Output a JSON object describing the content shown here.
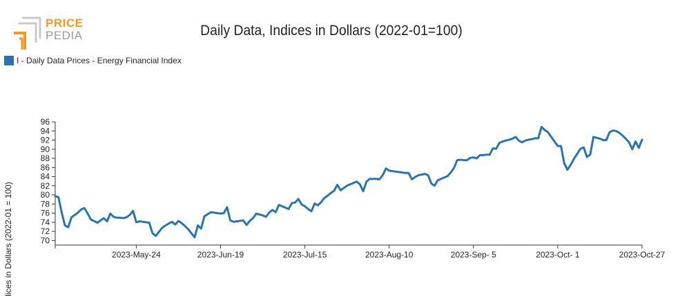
{
  "logo": {
    "word_1": "PRICE",
    "word_2": "PEDIA",
    "colors": {
      "orange": "#f39a1e",
      "gray": "#9a9a9a"
    }
  },
  "title": "Daily Data, Indices in Dollars (2022-01=100)",
  "legend": {
    "label": "I - Daily Data Prices - Energy Financial Index",
    "color": "#2874b2",
    "placement": "top-left"
  },
  "chart_data": {
    "type": "line",
    "title": "Daily Data, Indices in Dollars (2022-01=100)",
    "xlabel": "",
    "ylabel": "Indices in Dollars (2022-01 = 100)",
    "xlim": [
      "2023-04-29",
      "2023-10-27"
    ],
    "ylim": [
      69,
      96
    ],
    "y_ticks": [
      70,
      72,
      74,
      76,
      78,
      80,
      82,
      84,
      86,
      88,
      90,
      92,
      94,
      96
    ],
    "x_tick_dates": [
      "2023-05-24",
      "2023-06-19",
      "2023-07-15",
      "2023-08-10",
      "2023-09-05",
      "2023-10-01",
      "2023-10-27"
    ],
    "x_tick_labels": [
      "2023-May-24",
      "2023-Jun-19",
      "2023-Jul-15",
      "2023-Aug-10",
      "2023-Sep- 5",
      "2023-Oct- 1",
      "2023-Oct-27"
    ],
    "grid": false,
    "color": "#2874b2",
    "series": [
      {
        "name": "I - Daily Data Prices - Energy Financial Index",
        "x": [
          "2023-04-29",
          "2023-04-30",
          "2023-05-01",
          "2023-05-02",
          "2023-05-03",
          "2023-05-04",
          "2023-05-06",
          "2023-05-07",
          "2023-05-08",
          "2023-05-09",
          "2023-05-10",
          "2023-05-12",
          "2023-05-14",
          "2023-05-15",
          "2023-05-16",
          "2023-05-17",
          "2023-05-18",
          "2023-05-19",
          "2023-05-20",
          "2023-05-21",
          "2023-05-22",
          "2023-05-23",
          "2023-05-24",
          "2023-05-25",
          "2023-05-26",
          "2023-05-27",
          "2023-05-28",
          "2023-05-29",
          "2023-05-30",
          "2023-06-01",
          "2023-06-02",
          "2023-06-03",
          "2023-06-04",
          "2023-06-05",
          "2023-06-06",
          "2023-06-07",
          "2023-06-08",
          "2023-06-09",
          "2023-06-10",
          "2023-06-11",
          "2023-06-12",
          "2023-06-13",
          "2023-06-14",
          "2023-06-16",
          "2023-06-17",
          "2023-06-18",
          "2023-06-19",
          "2023-06-20",
          "2023-06-21",
          "2023-06-22",
          "2023-06-23",
          "2023-06-24",
          "2023-06-26",
          "2023-06-27",
          "2023-06-28",
          "2023-06-29",
          "2023-06-30",
          "2023-07-01",
          "2023-07-02",
          "2023-07-03",
          "2023-07-04",
          "2023-07-05",
          "2023-07-06",
          "2023-07-07",
          "2023-07-08",
          "2023-07-09",
          "2023-07-10",
          "2023-07-11",
          "2023-07-12",
          "2023-07-13",
          "2023-07-14",
          "2023-07-15",
          "2023-07-16",
          "2023-07-17",
          "2023-07-18",
          "2023-07-19",
          "2023-07-20",
          "2023-07-21",
          "2023-07-22",
          "2023-07-23",
          "2023-07-24",
          "2023-07-25",
          "2023-07-26",
          "2023-07-27",
          "2023-07-28",
          "2023-07-29",
          "2023-07-30",
          "2023-07-31",
          "2023-08-01",
          "2023-08-02",
          "2023-08-03",
          "2023-08-04",
          "2023-08-05",
          "2023-08-06",
          "2023-08-07",
          "2023-08-08",
          "2023-08-09",
          "2023-08-10",
          "2023-08-11",
          "2023-08-12",
          "2023-08-13",
          "2023-08-14",
          "2023-08-15",
          "2023-08-16",
          "2023-08-17",
          "2023-08-18",
          "2023-08-19",
          "2023-08-21",
          "2023-08-22",
          "2023-08-23",
          "2023-08-24",
          "2023-08-25",
          "2023-08-26",
          "2023-08-27",
          "2023-08-28",
          "2023-08-29",
          "2023-08-30",
          "2023-08-31",
          "2023-09-01",
          "2023-09-02",
          "2023-09-03",
          "2023-09-04",
          "2023-09-05",
          "2023-09-06",
          "2023-09-07",
          "2023-09-08",
          "2023-09-09",
          "2023-09-10",
          "2023-09-11",
          "2023-09-12",
          "2023-09-13",
          "2023-09-14",
          "2023-09-15",
          "2023-09-16",
          "2023-09-17",
          "2023-09-18",
          "2023-09-19",
          "2023-09-20",
          "2023-09-21",
          "2023-09-22",
          "2023-09-23",
          "2023-09-24",
          "2023-09-25",
          "2023-09-26",
          "2023-09-27",
          "2023-09-28",
          "2023-09-29",
          "2023-09-30",
          "2023-10-01",
          "2023-10-02",
          "2023-10-03",
          "2023-10-04",
          "2023-10-05",
          "2023-10-06",
          "2023-10-07",
          "2023-10-08",
          "2023-10-09",
          "2023-10-10",
          "2023-10-11",
          "2023-10-12",
          "2023-10-13",
          "2023-10-14",
          "2023-10-15",
          "2023-10-16",
          "2023-10-17",
          "2023-10-18",
          "2023-10-19",
          "2023-10-20",
          "2023-10-21",
          "2023-10-22",
          "2023-10-23",
          "2023-10-24",
          "2023-10-25",
          "2023-10-26",
          "2023-10-27"
        ],
        "values": [
          79.7,
          79.5,
          76.1,
          73.3,
          72.9,
          75.1,
          76.1,
          76.8,
          77.1,
          75.9,
          74.6,
          73.9,
          74.9,
          74.2,
          75.9,
          75.2,
          75.0,
          75.0,
          74.9,
          75.1,
          75.6,
          76.5,
          74.0,
          74.2,
          74.1,
          74.0,
          73.9,
          71.6,
          71.0,
          72.8,
          73.3,
          73.7,
          74.1,
          73.5,
          74.3,
          73.8,
          73.2,
          72.5,
          71.6,
          70.7,
          73.3,
          72.6,
          75.3,
          76.2,
          76.1,
          76.0,
          75.9,
          76.0,
          77.3,
          74.4,
          74.1,
          74.2,
          74.4,
          73.4,
          74.3,
          74.9,
          75.9,
          75.7,
          75.5,
          75.2,
          76.1,
          76.7,
          76.2,
          77.8,
          77.5,
          77.2,
          76.9,
          78.2,
          78.3,
          79.1,
          77.9,
          77.5,
          76.9,
          76.4,
          78.1,
          77.7,
          78.4,
          79.3,
          79.8,
          80.4,
          80.9,
          82.2,
          81.0,
          81.5,
          82.0,
          82.3,
          82.6,
          82.9,
          82.3,
          80.8,
          82.9,
          83.5,
          83.5,
          83.5,
          83.4,
          84.3,
          85.8,
          85.3,
          85.2,
          85.1,
          85.0,
          84.9,
          84.8,
          84.8,
          83.4,
          83.9,
          84.3,
          84.6,
          84.3,
          82.5,
          82.0,
          83.2,
          83.5,
          83.8,
          84.1,
          84.9,
          85.9,
          87.6,
          87.7,
          87.6,
          87.6,
          88.1,
          88.2,
          88.0,
          88.7,
          88.7,
          88.8,
          88.8,
          90.2,
          90.1,
          91.4,
          91.7,
          91.9,
          92.1,
          92.3,
          92.7,
          91.9,
          91.5,
          91.9,
          92.1,
          92.2,
          92.4,
          92.4,
          94.9,
          94.2,
          93.7,
          92.7,
          91.7,
          90.7,
          90.7,
          86.9,
          85.5,
          86.6,
          87.9,
          89.0,
          90.1,
          90.4,
          88.3,
          88.8,
          92.7,
          92.5,
          92.3,
          92.0,
          92.0,
          93.7,
          94.1,
          94.0,
          93.6,
          93.0,
          92.3,
          91.5,
          90.0,
          91.7,
          90.3,
          92.1
        ]
      }
    ]
  }
}
